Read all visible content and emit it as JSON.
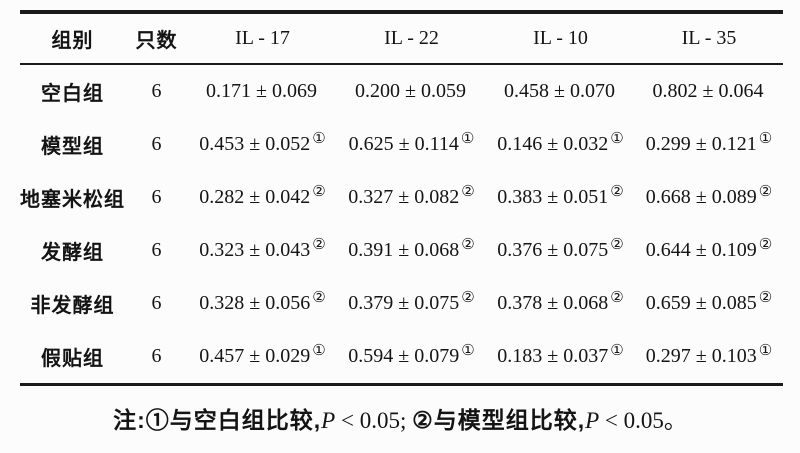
{
  "colors": {
    "background": "#fcfcfc",
    "text": "#141414",
    "rule": "#1b1b1b"
  },
  "table": {
    "headers": [
      "组别",
      "只数",
      "IL - 17",
      "IL - 22",
      "IL - 10",
      "IL - 35"
    ],
    "rows": [
      {
        "group": "空白组",
        "count": "6",
        "cells": [
          {
            "value": "0.171 ± 0.069",
            "mark": ""
          },
          {
            "value": "0.200 ± 0.059",
            "mark": ""
          },
          {
            "value": "0.458 ± 0.070",
            "mark": ""
          },
          {
            "value": "0.802 ± 0.064",
            "mark": ""
          }
        ]
      },
      {
        "group": "模型组",
        "count": "6",
        "cells": [
          {
            "value": "0.453 ± 0.052",
            "mark": "①"
          },
          {
            "value": "0.625 ± 0.114",
            "mark": "①"
          },
          {
            "value": "0.146 ± 0.032",
            "mark": "①"
          },
          {
            "value": "0.299 ± 0.121",
            "mark": "①"
          }
        ]
      },
      {
        "group": "地塞米松组",
        "count": "6",
        "cells": [
          {
            "value": "0.282 ± 0.042",
            "mark": "②"
          },
          {
            "value": "0.327 ± 0.082",
            "mark": "②"
          },
          {
            "value": "0.383 ± 0.051",
            "mark": "②"
          },
          {
            "value": "0.668 ± 0.089",
            "mark": "②"
          }
        ]
      },
      {
        "group": "发酵组",
        "count": "6",
        "cells": [
          {
            "value": "0.323 ± 0.043",
            "mark": "②"
          },
          {
            "value": "0.391 ± 0.068",
            "mark": "②"
          },
          {
            "value": "0.376 ± 0.075",
            "mark": "②"
          },
          {
            "value": "0.644 ± 0.109",
            "mark": "②"
          }
        ]
      },
      {
        "group": "非发酵组",
        "count": "6",
        "cells": [
          {
            "value": "0.328 ± 0.056",
            "mark": "②"
          },
          {
            "value": "0.379 ± 0.075",
            "mark": "②"
          },
          {
            "value": "0.378 ± 0.068",
            "mark": "②"
          },
          {
            "value": "0.659 ± 0.085",
            "mark": "②"
          }
        ]
      },
      {
        "group": "假贴组",
        "count": "6",
        "cells": [
          {
            "value": "0.457 ± 0.029",
            "mark": "①"
          },
          {
            "value": "0.594 ± 0.079",
            "mark": "①"
          },
          {
            "value": "0.183 ± 0.037",
            "mark": "①"
          },
          {
            "value": "0.297 ± 0.103",
            "mark": "①"
          }
        ]
      }
    ]
  },
  "note": {
    "label": "注:",
    "seg1": "①与空白组比较,",
    "p1": "P",
    "cmp1": " < 0.05; ",
    "seg2": "②与模型组比较,",
    "p2": "P",
    "cmp2": " < 0.05。"
  }
}
